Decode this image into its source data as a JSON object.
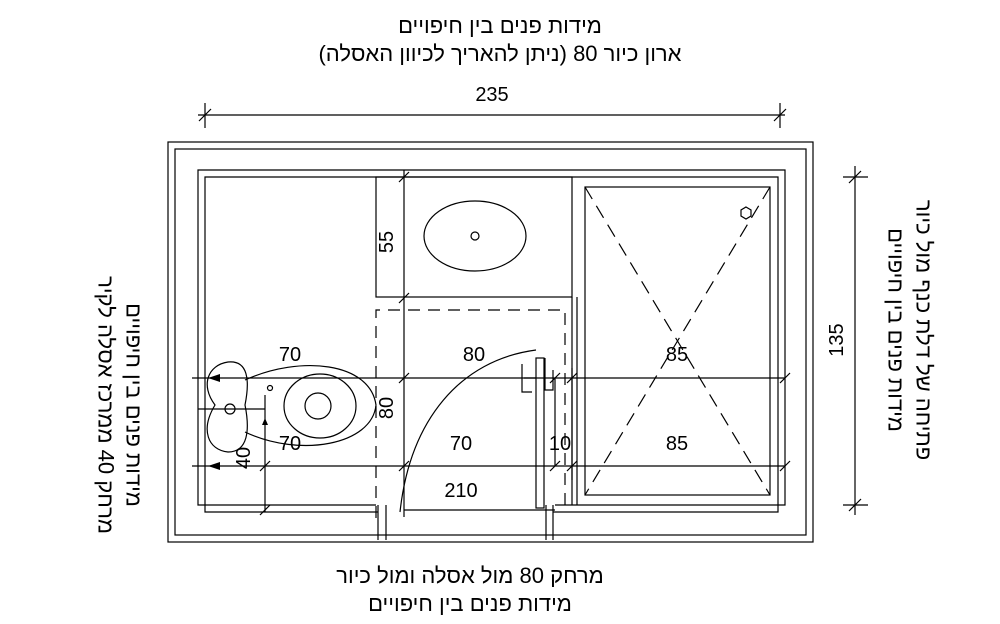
{
  "notes": {
    "top_line1": "מידות פנים בין חיפויים",
    "top_line2": "ארון כיור 80 (ניתן להאריך לכיוון האסלה)",
    "bottom_line1": "מרחק 80 מול אסלה ומול כיור",
    "bottom_line2": "מידות פנים בין חיפויים",
    "left_line1": "מידות פנים בין חיפויים",
    "left_line2": "מרחק 40 ממרכז אסלה לקיר",
    "right_line1": "פתיחה של דלת כנף מול כיור",
    "right_line2": "מידות פנים בין חיפויים"
  },
  "dims": {
    "overall_width": "235",
    "overall_height": "135",
    "vanity_depth": "55",
    "toilet_zone_top": "70",
    "toilet_zone_bottom": "70",
    "toilet_axis_to_wall": "40",
    "center_clearance_top": "80",
    "center_clearance_bottom": "70",
    "front_clearance": "80",
    "door_gap": "10",
    "shower_top": "85",
    "shower_bottom": "85",
    "inner_width": "210"
  }
}
